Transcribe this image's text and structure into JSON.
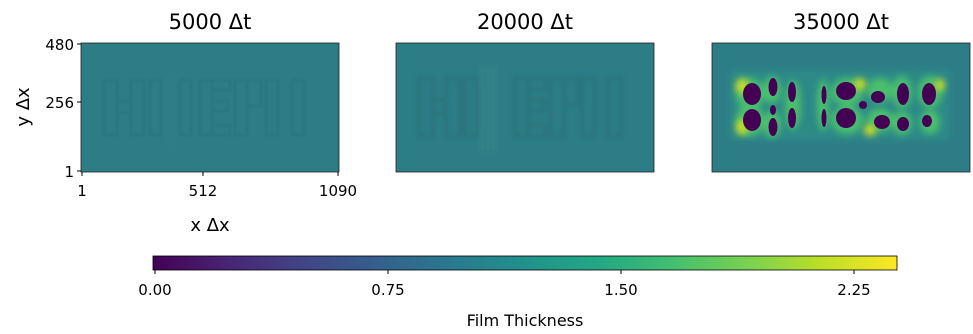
{
  "chart_data": {
    "type": "heatmap",
    "panels": [
      {
        "title": "5000 Δt",
        "pattern": "faint"
      },
      {
        "title": "20000 Δt",
        "pattern": "blurred"
      },
      {
        "title": "35000 Δt",
        "pattern": "droplets"
      }
    ],
    "letters_pattern": "HI|ERN",
    "xlabel": "x Δx",
    "ylabel": "y Δx",
    "xticks": [
      "1",
      "512",
      "1090"
    ],
    "yticks": [
      "480",
      "256",
      "1"
    ],
    "xlim": [
      1,
      1090
    ],
    "ylim": [
      1,
      480
    ],
    "colorbar": {
      "label": "Film Thickness",
      "ticks": [
        "0.00",
        "0.75",
        "1.50",
        "2.25"
      ],
      "range": [
        0.0,
        2.4
      ],
      "colormap": "viridis"
    },
    "base_color": "#2c7d86"
  }
}
